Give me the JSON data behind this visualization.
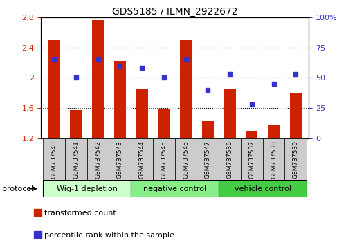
{
  "title": "GDS5185 / ILMN_2922672",
  "samples": [
    "GSM737540",
    "GSM737541",
    "GSM737542",
    "GSM737543",
    "GSM737544",
    "GSM737545",
    "GSM737546",
    "GSM737547",
    "GSM737536",
    "GSM737537",
    "GSM737538",
    "GSM737539"
  ],
  "transformed_count": [
    2.5,
    1.57,
    2.76,
    2.22,
    1.85,
    1.58,
    2.5,
    1.43,
    1.85,
    1.3,
    1.37,
    1.8
  ],
  "percentile_rank": [
    65,
    50,
    65,
    60,
    58,
    50,
    65,
    40,
    53,
    28,
    45,
    53
  ],
  "bar_color": "#cc2200",
  "dot_color": "#3333cc",
  "ylim_left": [
    1.2,
    2.8
  ],
  "ylim_right": [
    0,
    100
  ],
  "yticks_left": [
    1.2,
    1.6,
    2.0,
    2.4,
    2.8
  ],
  "yticks_right": [
    0,
    25,
    50,
    75,
    100
  ],
  "ytick_labels_right": [
    "0",
    "25",
    "50",
    "75",
    "100%"
  ],
  "ytick_labels_left": [
    "1.2",
    "1.6",
    "2",
    "2.4",
    "2.8"
  ],
  "groups": [
    {
      "label": "Wig-1 depletion",
      "start": 0,
      "end": 4,
      "color": "#ccffcc"
    },
    {
      "label": "negative control",
      "start": 4,
      "end": 8,
      "color": "#88ee88"
    },
    {
      "label": "vehicle control",
      "start": 8,
      "end": 12,
      "color": "#44cc44"
    }
  ],
  "protocol_label": "protocol",
  "legend_bar_label": "transformed count",
  "legend_dot_label": "percentile rank within the sample",
  "bar_bottom": 1.2,
  "tick_label_area_color": "#cccccc",
  "bar_width": 0.55
}
